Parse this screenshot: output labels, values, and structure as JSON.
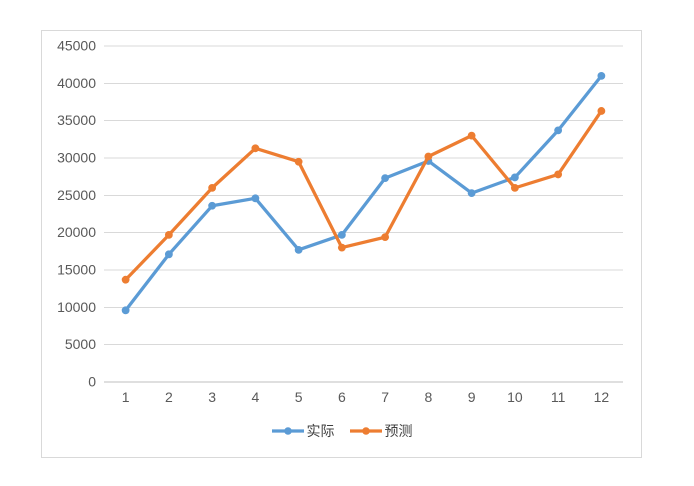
{
  "chart_data": {
    "type": "line",
    "title": "",
    "categories": [
      "1",
      "2",
      "3",
      "4",
      "5",
      "6",
      "7",
      "8",
      "9",
      "10",
      "11",
      "12"
    ],
    "series": [
      {
        "name": "实际",
        "color": "#5B9BD5",
        "values": [
          9600,
          17100,
          23600,
          24600,
          17700,
          19700,
          27300,
          29600,
          25300,
          27400,
          33700,
          41000
        ]
      },
      {
        "name": "预测",
        "color": "#ED7D31",
        "values": [
          13700,
          19700,
          26000,
          31300,
          29500,
          18000,
          19400,
          30200,
          33000,
          26000,
          27800,
          36300
        ]
      }
    ],
    "xlabel": "",
    "ylabel": "",
    "ylim": [
      0,
      45000
    ],
    "ytick_step": 5000,
    "yticks": [
      0,
      5000,
      10000,
      15000,
      20000,
      25000,
      30000,
      35000,
      40000,
      45000
    ],
    "grid": true,
    "legend_position": "bottom",
    "grid_color": "#D9D9D9",
    "axis_color": "#BFBFBF",
    "tick_label_color": "#595959",
    "legend_text_color": "#404040",
    "border_color": "#D9D9D9"
  }
}
